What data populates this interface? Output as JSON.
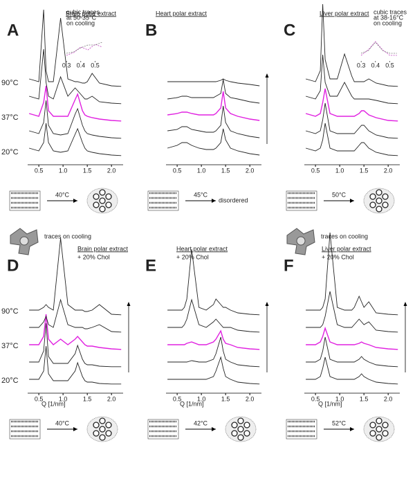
{
  "chart_data": [
    {
      "type": "waterfall",
      "panel": "A",
      "title": "Brain polar extract",
      "x": [
        0.3,
        0.5,
        0.6,
        0.65,
        0.7,
        0.8,
        0.95,
        1.1,
        1.25,
        1.3,
        1.4,
        1.45,
        1.5,
        1.6,
        1.75,
        2.0,
        2.2
      ],
      "xlim": [
        0.27,
        2.24
      ],
      "xticks": [
        0.5,
        {
          "value": 1,
          "label": "1.0"
        },
        1.5,
        {
          "value": 2,
          "label": "2.0"
        }
      ],
      "series": [
        {
          "color": "#222222",
          "values": [
            3,
            2,
            5,
            12,
            5,
            2,
            1.5,
            2,
            8,
            10,
            5,
            3,
            2,
            1.5,
            1,
            0.5,
            0.3
          ]
        },
        {
          "color": "#222222",
          "values": [
            3,
            2,
            6,
            14,
            5,
            2,
            1.5,
            2,
            9,
            11,
            5,
            3,
            2,
            1.5,
            1,
            0.5,
            0.3
          ]
        },
        {
          "color": "#e020e0",
          "values": [
            3,
            2,
            7,
            13,
            4,
            2,
            2,
            2,
            8,
            10,
            4,
            2.5,
            2,
            1.5,
            1,
            0.5,
            0.3
          ]
        },
        {
          "color": "#222222",
          "values": [
            3,
            2,
            20,
            8,
            3,
            2,
            10,
            3,
            6,
            5,
            3,
            2,
            2,
            3,
            1,
            0.5,
            0.3
          ]
        },
        {
          "color": "#222222",
          "values": [
            3,
            2,
            28,
            6,
            2,
            2,
            25,
            3,
            2,
            2,
            1.5,
            1.5,
            2,
            5,
            1.5,
            0.5,
            0.3
          ]
        }
      ],
      "temperature_labels": [
        "90°C",
        "37°C",
        "20°C"
      ],
      "transition": "40°C",
      "note": "traces on cooling",
      "inset": {
        "text": [
          "cubic traces",
          "at 50-35°C",
          "on cooling"
        ],
        "x": [
          0.3,
          0.35,
          0.4,
          0.45,
          0.5,
          0.55
        ],
        "xlim": [
          0.28,
          0.57
        ],
        "xticks": [
          0.3,
          0.4,
          0.5
        ],
        "series": [
          {
            "color": "#c040c0",
            "values": [
              1,
              2,
              4,
              3,
              5,
              4
            ]
          },
          {
            "color": "#777777",
            "values": [
              1,
              1.5,
              3,
              4,
              4,
              5
            ]
          }
        ]
      }
    },
    {
      "type": "waterfall",
      "panel": "B",
      "title": "Heart polar extract",
      "x": [
        0.3,
        0.5,
        0.6,
        0.65,
        0.7,
        0.8,
        0.95,
        1.1,
        1.25,
        1.3,
        1.4,
        1.45,
        1.5,
        1.6,
        1.75,
        2.0,
        2.2
      ],
      "xlim": [
        0.27,
        2.24
      ],
      "xticks": [
        0.5,
        {
          "value": 1,
          "label": "1.0"
        },
        1.5,
        {
          "value": 2,
          "label": "2.0"
        }
      ],
      "series": [
        {
          "color": "#222222",
          "values": [
            3,
            4,
            5,
            5,
            5,
            4,
            3,
            2.5,
            2.5,
            3,
            5,
            10,
            6,
            3,
            2,
            1,
            0.5
          ]
        },
        {
          "color": "#222222",
          "values": [
            3,
            3.5,
            4.5,
            4.5,
            4.5,
            3.5,
            3,
            2.5,
            2.5,
            3,
            5,
            12,
            6,
            3,
            2,
            1,
            0.5
          ]
        },
        {
          "color": "#e020e0",
          "values": [
            2.5,
            3,
            3.5,
            3.5,
            3.5,
            3,
            2.5,
            2.5,
            2.5,
            3,
            5,
            11,
            5,
            3,
            2,
            1,
            0.5
          ]
        },
        {
          "color": "#222222",
          "values": [
            2,
            2.5,
            3,
            3,
            3,
            2.5,
            2.5,
            2.5,
            2.5,
            3,
            4,
            9,
            4,
            2.5,
            2,
            1,
            0.5
          ]
        },
        {
          "color": "#222222",
          "values": [
            2,
            2,
            2,
            2,
            2,
            2,
            2,
            2,
            2,
            2,
            2.5,
            3,
            2.5,
            2,
            1.5,
            1,
            0.5
          ]
        }
      ],
      "arrow": true,
      "transition": "45°C",
      "result": "disordered"
    },
    {
      "type": "waterfall",
      "panel": "C",
      "title": "Liver polar extract",
      "x": [
        0.3,
        0.5,
        0.6,
        0.65,
        0.7,
        0.8,
        0.95,
        1.1,
        1.25,
        1.3,
        1.4,
        1.45,
        1.5,
        1.6,
        1.75,
        2.0,
        2.2
      ],
      "xlim": [
        0.27,
        2.24
      ],
      "xticks": [
        0.5,
        {
          "value": 1,
          "label": "1.0"
        },
        1.5,
        {
          "value": 2,
          "label": "2.0"
        }
      ],
      "series": [
        {
          "color": "#222222",
          "values": [
            3,
            2,
            3,
            6,
            12,
            3,
            2,
            2,
            2,
            2,
            4,
            5,
            5,
            3,
            1.5,
            0.5,
            0.3
          ]
        },
        {
          "color": "#222222",
          "values": [
            3,
            2,
            3,
            7,
            13,
            3,
            2,
            2,
            2,
            2,
            4,
            5,
            5,
            3,
            1.5,
            0.5,
            0.3
          ]
        },
        {
          "color": "#e020e0",
          "values": [
            3,
            2,
            3,
            7,
            12,
            3,
            2,
            2,
            2,
            2,
            3,
            4,
            4,
            2.5,
            1.5,
            0.5,
            0.3
          ]
        },
        {
          "color": "#222222",
          "values": [
            3,
            2,
            5,
            18,
            8,
            3,
            3,
            8,
            3,
            2,
            2,
            2,
            2,
            2,
            1.5,
            0.5,
            0.3
          ]
        },
        {
          "color": "#222222",
          "values": [
            3,
            2,
            6,
            30,
            10,
            3,
            3,
            12,
            4,
            2,
            2,
            2,
            2,
            3,
            1.5,
            0.5,
            0.3
          ]
        }
      ],
      "transition": "50°C",
      "note": "traces on cooling",
      "inset": {
        "text": [
          "cubic traces",
          "at 38-16°C",
          "on cooling"
        ],
        "x": [
          0.3,
          0.35,
          0.4,
          0.45,
          0.5,
          0.55
        ],
        "xlim": [
          0.28,
          0.57
        ],
        "xticks": [
          0.3,
          0.4,
          0.5
        ],
        "series": [
          {
            "color": "#c040c0",
            "values": [
              1,
              3,
              6,
              3,
              1,
              1
            ]
          },
          {
            "color": "#777777",
            "values": [
              1,
              2,
              5,
              2,
              1,
              1
            ]
          }
        ]
      }
    },
    {
      "type": "waterfall",
      "panel": "D",
      "title": "Brain polar extract",
      "subtitle": "+ 20% Chol",
      "x": [
        0.3,
        0.5,
        0.6,
        0.65,
        0.7,
        0.8,
        0.95,
        1.1,
        1.25,
        1.3,
        1.4,
        1.45,
        1.5,
        1.6,
        1.75,
        2.0,
        2.2
      ],
      "xlim": [
        0.27,
        2.24
      ],
      "xticks": [
        0.5,
        {
          "value": 1,
          "label": "1.0"
        },
        1.5,
        {
          "value": 2,
          "label": "2.0"
        }
      ],
      "xlabel": "Q  [1/nm]",
      "series": [
        {
          "color": "#222222",
          "values": [
            2,
            2,
            5,
            14,
            4,
            1.5,
            1.5,
            1.5,
            5,
            8,
            3,
            1.5,
            1,
            1,
            0.5,
            0.3,
            0.3
          ]
        },
        {
          "color": "#222222",
          "values": [
            2,
            2,
            6,
            16,
            4,
            1.5,
            1.5,
            1.5,
            5,
            8,
            3,
            1.5,
            1,
            1,
            0.5,
            0.3,
            0.3
          ]
        },
        {
          "color": "#e020e0",
          "values": [
            2,
            2,
            5,
            13,
            4,
            2,
            4,
            2,
            4,
            5,
            3,
            2,
            1.5,
            1.5,
            1,
            0.5,
            0.3
          ]
        },
        {
          "color": "#222222",
          "values": [
            2,
            2,
            4,
            6,
            3,
            2,
            12,
            3,
            2,
            2,
            2,
            1.5,
            1.5,
            2,
            3,
            0.5,
            0.3
          ]
        },
        {
          "color": "#222222",
          "values": [
            2,
            2,
            3,
            4,
            3,
            2,
            28,
            4,
            2,
            2,
            2,
            1.5,
            1.5,
            2,
            4,
            0.5,
            0.3
          ]
        }
      ],
      "temperature_labels": [
        "90°C",
        "37°C",
        "20°C"
      ],
      "arrow": true,
      "transition": "40°C"
    },
    {
      "type": "waterfall",
      "panel": "E",
      "title": "Heart polar extract",
      "subtitle": "+ 20% Chol",
      "x": [
        0.3,
        0.5,
        0.6,
        0.65,
        0.7,
        0.8,
        0.95,
        1.1,
        1.25,
        1.3,
        1.4,
        1.45,
        1.5,
        1.6,
        1.75,
        2.0,
        2.2
      ],
      "xlim": [
        0.27,
        2.24
      ],
      "xticks": [
        0.5,
        {
          "value": 1,
          "label": "1.0"
        },
        1.5,
        {
          "value": 2,
          "label": "2.0"
        }
      ],
      "xlabel": "Q  [1/nm]",
      "series": [
        {
          "color": "#222222",
          "values": [
            2,
            2,
            2,
            2,
            2,
            2,
            2,
            2,
            3,
            5,
            10,
            6,
            3,
            2,
            1,
            0.5,
            0.3
          ]
        },
        {
          "color": "#222222",
          "values": [
            2,
            2,
            2,
            2,
            2,
            2.5,
            2,
            2,
            3,
            5,
            11,
            6,
            3,
            2,
            1,
            0.5,
            0.3
          ]
        },
        {
          "color": "#e020e0",
          "values": [
            2,
            2,
            2,
            2,
            2.5,
            3,
            2,
            2,
            3,
            4,
            7,
            4,
            2.5,
            2,
            1,
            0.5,
            0.3
          ]
        },
        {
          "color": "#222222",
          "values": [
            2,
            2,
            2,
            3,
            5,
            12,
            3,
            2,
            4,
            5,
            3,
            2,
            2,
            2,
            1,
            0.5,
            0.3
          ]
        },
        {
          "color": "#222222",
          "values": [
            2,
            2,
            2,
            3,
            6,
            24,
            3,
            2,
            4,
            6,
            4,
            3,
            3,
            2,
            1,
            0.5,
            0.3
          ]
        }
      ],
      "arrow": true,
      "transition": "42°C"
    },
    {
      "type": "waterfall",
      "panel": "F",
      "title": "Liver polar extract",
      "subtitle": "+ 20% Chol",
      "x": [
        0.3,
        0.5,
        0.6,
        0.65,
        0.7,
        0.8,
        0.95,
        1.1,
        1.25,
        1.3,
        1.4,
        1.45,
        1.5,
        1.6,
        1.75,
        2.0,
        2.2
      ],
      "xlim": [
        0.27,
        2.24
      ],
      "xticks": [
        0.5,
        {
          "value": 1,
          "label": "1.0"
        },
        1.5,
        {
          "value": 2,
          "label": "2.0"
        }
      ],
      "xlabel": "Q  [1/nm]",
      "series": [
        {
          "color": "#222222",
          "values": [
            2,
            2,
            3,
            6,
            10,
            3,
            2,
            2,
            2,
            2,
            3,
            4,
            3,
            2,
            1,
            0.5,
            0.3
          ]
        },
        {
          "color": "#222222",
          "values": [
            2,
            2,
            3,
            6,
            11,
            3,
            2,
            2,
            2,
            2,
            3,
            4,
            3,
            2,
            1,
            0.5,
            0.3
          ]
        },
        {
          "color": "#e020e0",
          "values": [
            2,
            2,
            3,
            5,
            8,
            3,
            2,
            2,
            2,
            2,
            2.5,
            3,
            2.5,
            2,
            1,
            0.5,
            0.3
          ]
        },
        {
          "color": "#222222",
          "values": [
            2,
            2,
            2,
            3,
            6,
            15,
            3,
            2,
            2,
            3,
            5,
            4,
            3,
            4,
            1,
            0.5,
            0.3
          ]
        },
        {
          "color": "#222222",
          "values": [
            2,
            2,
            2,
            3,
            6,
            30,
            3,
            2,
            2,
            3,
            7,
            5,
            3,
            5,
            1,
            0.5,
            0.3
          ]
        }
      ],
      "arrow": true,
      "transition": "52°C"
    }
  ]
}
